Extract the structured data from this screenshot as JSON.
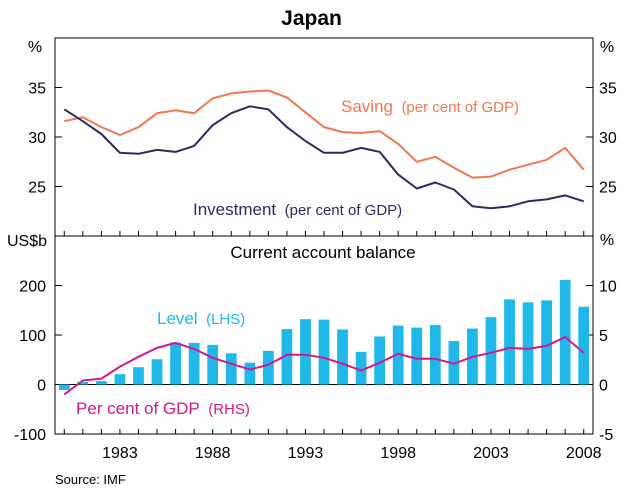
{
  "chart_data": [
    {
      "type": "line",
      "title": "Japan",
      "left_unit": "%",
      "right_unit": "%",
      "ylim": [
        20,
        40
      ],
      "left_ticks": [
        "35",
        "30",
        "25"
      ],
      "right_ticks": [
        "35",
        "30",
        "25"
      ],
      "right_ticks_extra": "%",
      "x": [
        1980,
        1981,
        1982,
        1983,
        1984,
        1985,
        1986,
        1987,
        1988,
        1989,
        1990,
        1991,
        1992,
        1993,
        1994,
        1995,
        1996,
        1997,
        1998,
        1999,
        2000,
        2001,
        2002,
        2003,
        2004,
        2005,
        2006,
        2007,
        2008
      ],
      "series": [
        {
          "name": "Saving",
          "label": "Saving",
          "label_suffix": "(per cent of GDP)",
          "color": "#f07850",
          "values": [
            31.6,
            32.0,
            31.0,
            30.2,
            31.0,
            32.4,
            32.7,
            32.4,
            33.9,
            34.4,
            34.6,
            34.7,
            34.0,
            32.5,
            31.0,
            30.5,
            30.4,
            30.6,
            29.3,
            27.5,
            28.0,
            26.9,
            25.9,
            26.0,
            26.7,
            27.2,
            27.7,
            28.9,
            26.7
          ]
        },
        {
          "name": "Investment",
          "label": "Investment",
          "label_suffix": "(per cent of GDP)",
          "color": "#2b2b5e",
          "values": [
            32.8,
            31.6,
            30.3,
            28.4,
            28.3,
            28.7,
            28.5,
            29.1,
            31.2,
            32.4,
            33.1,
            32.8,
            31.0,
            29.6,
            28.4,
            28.4,
            28.9,
            28.5,
            26.2,
            24.8,
            25.4,
            24.7,
            23.0,
            22.8,
            23.0,
            23.5,
            23.7,
            24.1,
            23.5
          ]
        }
      ]
    },
    {
      "type": "bar",
      "title": "Current account balance",
      "left_unit": "US$b",
      "ylim": [
        -100,
        300
      ],
      "y2lim": [
        -5,
        15
      ],
      "left_ticks": [
        "200",
        "100",
        "0",
        "-100"
      ],
      "right_ticks": [
        "10",
        "5",
        "0",
        "-5"
      ],
      "x_tick_labels": [
        "1983",
        "1988",
        "1993",
        "1998",
        "2003",
        "2008"
      ],
      "x": [
        1980,
        1981,
        1982,
        1983,
        1984,
        1985,
        1986,
        1987,
        1988,
        1989,
        1990,
        1991,
        1992,
        1993,
        1994,
        1995,
        1996,
        1997,
        1998,
        1999,
        2000,
        2001,
        2002,
        2003,
        2004,
        2005,
        2006,
        2007,
        2008
      ],
      "series": [
        {
          "name": "Level",
          "label": "Level",
          "label_suffix": "(LHS)",
          "axis": "left",
          "color": "#1fb8e8",
          "values": [
            -11,
            5,
            7,
            21,
            35,
            51,
            85,
            84,
            80,
            63,
            44,
            68,
            112,
            132,
            131,
            111,
            66,
            97,
            119,
            115,
            120,
            88,
            113,
            136,
            172,
            166,
            170,
            211,
            157
          ]
        },
        {
          "name": "Per cent of GDP",
          "label": "Per cent of GDP",
          "label_suffix": "(RHS)",
          "axis": "right",
          "color": "#d6168b",
          "values": [
            -1.0,
            0.4,
            0.6,
            1.8,
            2.8,
            3.7,
            4.2,
            3.6,
            2.7,
            2.1,
            1.5,
            2.0,
            3.0,
            3.0,
            2.7,
            2.1,
            1.4,
            2.2,
            3.1,
            2.6,
            2.6,
            2.1,
            2.8,
            3.2,
            3.7,
            3.6,
            3.9,
            4.8,
            3.2
          ]
        }
      ]
    }
  ],
  "source": "Source: IMF"
}
